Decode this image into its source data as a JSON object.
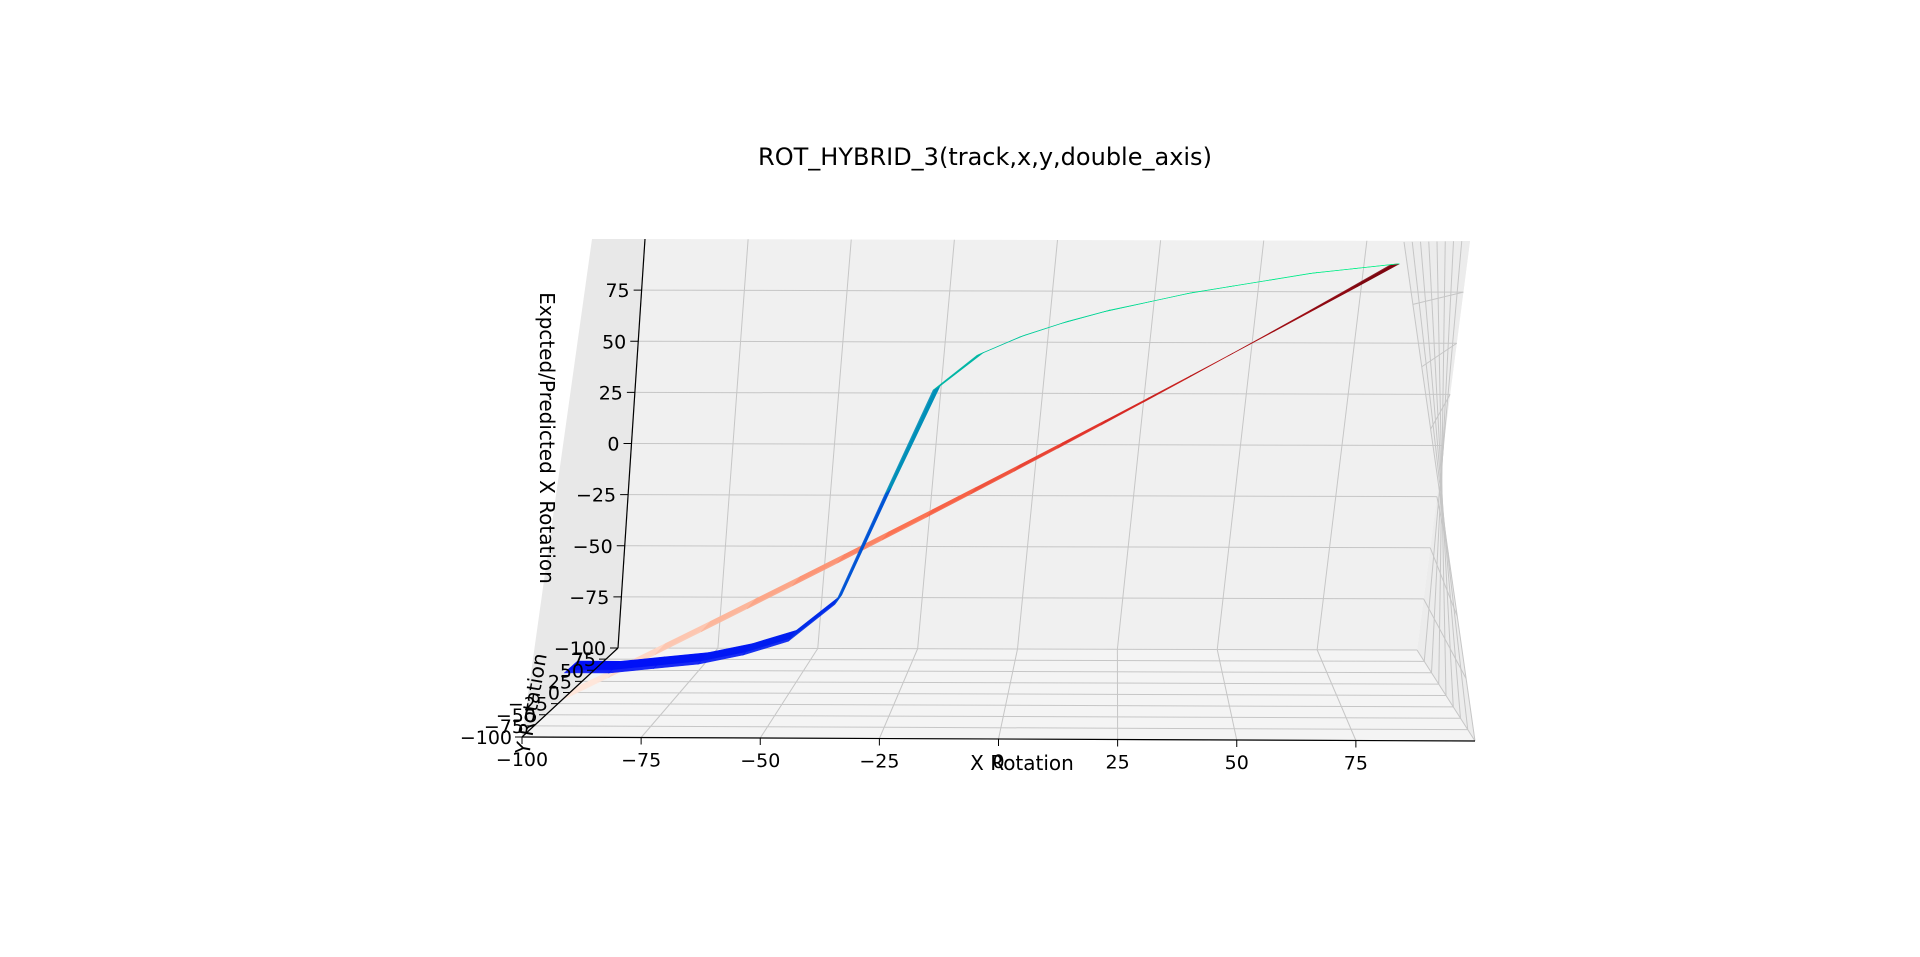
{
  "chart_data": {
    "type": "surface3d",
    "title": "ROT_HYBRID_3(track,x,y,double_axis)",
    "xlabel": "X Rotation",
    "ylabel": "Y Rotation",
    "zlabel": "Expcted/Predicted X Rotation",
    "xlim": [
      -100,
      100
    ],
    "ylim": [
      -100,
      100
    ],
    "zlim": [
      -100,
      100
    ],
    "x_ticks": [
      "−100",
      "−75",
      "−50",
      "−25",
      "0",
      "25",
      "50",
      "75"
    ],
    "y_ticks": [
      "−100",
      "−75",
      "−50",
      "−25",
      "0",
      "25",
      "50",
      "75"
    ],
    "z_ticks": [
      "−100",
      "−75",
      "−50",
      "−25",
      "0",
      "25",
      "50",
      "75"
    ],
    "grid": true,
    "series": [
      {
        "colormap": "Reds",
        "x": [
          -100,
          -90,
          -80,
          -70,
          -60,
          -50,
          -40,
          -30,
          -20,
          -10,
          0,
          10,
          20,
          30,
          40,
          50,
          60,
          70,
          80,
          90
        ],
        "z": [
          -100,
          -90,
          -80,
          -70,
          -60,
          -50,
          -40,
          -30,
          -20,
          -10,
          0,
          10,
          20,
          30,
          40,
          50,
          60,
          70,
          80,
          90
        ]
      },
      {
        "colormap": "winter",
        "x": [
          -100,
          -90,
          -80,
          -70,
          -60,
          -50,
          -40,
          -30,
          -20,
          -10,
          0,
          10,
          20,
          30,
          40,
          50,
          60,
          70,
          80,
          90
        ],
        "z": [
          -88,
          -88,
          -86,
          -84,
          -80,
          -74,
          -58,
          -10,
          35,
          50,
          58,
          64,
          69,
          73,
          77,
          80,
          83,
          86,
          88,
          90
        ]
      }
    ]
  }
}
